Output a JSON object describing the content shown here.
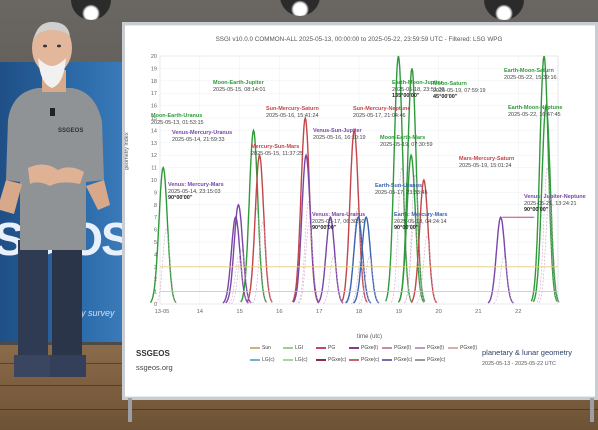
{
  "chart_data": {
    "type": "line",
    "title": "SSGI v10.0.0 COMMON-ALL 2025-05-13, 00:00:00 to 2025-05-22, 23:59:59 UTC - Filtered: LSG WPG",
    "ylabel": "geometry index",
    "xlabel": "time (utc)",
    "x_ticks": [
      "13-05",
      "14",
      "15",
      "16",
      "17",
      "18",
      "19",
      "20",
      "21",
      "22"
    ],
    "y_ticks": [
      0,
      1,
      2,
      3,
      4,
      5,
      6,
      7,
      8,
      9,
      10,
      11,
      12,
      13,
      14,
      15,
      16,
      17,
      18,
      19,
      20
    ],
    "ylim": [
      0,
      20
    ],
    "xlim": [
      13,
      23
    ],
    "grid": true,
    "legend_position": "bottom",
    "series": [
      {
        "name": "Sun",
        "color": "#c9b37e"
      },
      {
        "name": "LGI",
        "color": "#9ecf8f"
      },
      {
        "name": "PG",
        "color": "#c8407e"
      },
      {
        "name": "PGxe(I)",
        "color": "#8a3a8a"
      },
      {
        "name": "PGxe(I)",
        "color": "#c98da0"
      },
      {
        "name": "PGxe(I)",
        "color": "#b99bc6"
      },
      {
        "name": "PGxe(I)",
        "color": "#d3b1b1"
      },
      {
        "name": "LG(c)",
        "color": "#6fb3d6"
      },
      {
        "name": "LG(c)",
        "color": "#a8d69c"
      },
      {
        "name": "PGxe(c)",
        "color": "#8b2a4b"
      },
      {
        "name": "PGxe(c)",
        "color": "#c06a6a"
      },
      {
        "name": "PGxe(c)",
        "color": "#7a6bb0"
      },
      {
        "name": "PGxe(c)",
        "color": "#999999"
      }
    ],
    "events": [
      {
        "label": "Moon-Earth-Uranus",
        "time": "2025-05-13, 01:53:15",
        "x": 13.08,
        "y": 11,
        "color": "#2f9a3a"
      },
      {
        "label": "Venus-Mercury-Uranus",
        "time": "2025-05-14, 21:59:33",
        "x": 14.9,
        "y": 7,
        "color": "#7a45a8"
      },
      {
        "label": "Moon-Earth-Jupiter",
        "time": "2025-05-15, 08:14:01",
        "x": 15.35,
        "y": 14,
        "color": "#2f9a3a"
      },
      {
        "label": "Mercury-Sun-Mars",
        "time": "2025-05-15, 11:37:25",
        "x": 15.5,
        "y": 12,
        "color": "#c2454a"
      },
      {
        "label": "Sun-Mercury-Saturn",
        "time": "2025-05-16, 15:41:24",
        "x": 16.65,
        "y": 15,
        "color": "#c2454a"
      },
      {
        "label": "Venus-Sun-Jupiter",
        "time": "2025-05-16, 16:10:19",
        "x": 16.67,
        "y": 12,
        "color": "#7a45a8"
      },
      {
        "label": "Sun-Mercury-Neptune",
        "time": "2025-05-17, 21:04:46",
        "x": 17.88,
        "y": 14,
        "color": "#c2454a"
      },
      {
        "label": "Venus: Mars-Uranus",
        "time": "2025-05-17, 06:30:50",
        "x": 17.28,
        "y": 7,
        "color": "#7a45a8"
      },
      {
        "label": "Earth-Moon-Jupiter",
        "time": "2025-05-18, 23:51:33",
        "x": 18.99,
        "y": 20,
        "color": "#2f9a3a"
      },
      {
        "label": "Moon-Saturn",
        "time": "2025-05-19, 07:59:19",
        "x": 19.33,
        "y": 19,
        "color": "#2f9a3a"
      },
      {
        "label": "Earth-Sun-Uranus",
        "time": "2025-05-17, 23:33:45",
        "x": 17.98,
        "y": 7,
        "color": "#3a64b0"
      },
      {
        "label": "Earth: Mercury-Mars",
        "time": "2025-05-18, 04:24:14",
        "x": 18.18,
        "y": 7,
        "color": "#3a64b0"
      },
      {
        "label": "Moon-Earth-Mars",
        "time": "2025-05-19, 07:30:59",
        "x": 19.31,
        "y": 12,
        "color": "#2f9a3a"
      },
      {
        "label": "Mars-Mercury-Saturn",
        "time": "2025-05-19, 15:01:24",
        "x": 19.63,
        "y": 10,
        "color": "#c2454a"
      },
      {
        "label": "Earth-Moon-Saturn",
        "time": "2025-05-22, 15:39:16",
        "x": 22.65,
        "y": 20,
        "color": "#2f9a3a"
      },
      {
        "label": "Earth-Moon-Neptune",
        "time": "2025-05-22, 16:47:45",
        "x": 22.7,
        "y": 16,
        "color": "#2f9a3a"
      },
      {
        "label": "Venus: Jupiter-Neptune",
        "time": "2025-05-21, 13:24:21",
        "x": 21.56,
        "y": 7,
        "color": "#7a45a8"
      },
      {
        "label": "Venus: Mercury-Mars",
        "time": "2025-05-14, 23:15:03",
        "x": 14.97,
        "y": 8,
        "color": "#7a45a8"
      }
    ]
  },
  "annotations": [
    {
      "title": "Moon-Earth-Uranus",
      "time": "2025-05-13, 01:53:15",
      "color": "#2f9a3a"
    },
    {
      "title": "Venus-Mercury-Uranus",
      "time": "2025-05-14, 21:59:33",
      "color": "#7a45a8"
    },
    {
      "title": "Moon-Earth-Jupiter",
      "time": "2025-05-15, 08:14:01",
      "color": "#2f9a3a"
    },
    {
      "title": "Mercury-Sun-Mars",
      "time": "2025-05-15, 11:37:25",
      "color": "#c2454a"
    },
    {
      "title": "Sun-Mercury-Saturn",
      "time": "2025-05-16, 15:41:24",
      "color": "#c2454a"
    },
    {
      "title": "Venus-Sun-Jupiter",
      "time": "2025-05-16, 16:10:19",
      "color": "#7a45a8"
    },
    {
      "title": "Sun-Mercury-Neptune",
      "time": "2025-05-17, 21:04:46",
      "color": "#c2454a"
    },
    {
      "title": "Earth-Moon-Jupiter",
      "time": "2025-05-18, 23:51:33",
      "extra": "135°00'00\"",
      "color": "#2f9a3a"
    },
    {
      "title": "Moon-Saturn",
      "time": "2025-05-19, 07:59:19",
      "extra": "45°00'00\"",
      "color": "#2f9a3a"
    },
    {
      "title": "Earth-Moon-Saturn",
      "time": "2025-05-22, 15:39:16",
      "color": "#2f9a3a"
    },
    {
      "title": "Earth-Moon-Neptune",
      "time": "2025-05-22, 16:47:45",
      "color": "#2f9a3a"
    },
    {
      "title": "Moon-Earth-Mars",
      "time": "2025-05-19, 07:30:59",
      "color": "#2f9a3a"
    },
    {
      "title": "Mars-Mercury-Saturn",
      "time": "2025-05-19, 15:01:24",
      "color": "#c2454a"
    },
    {
      "title": "Earth-Sun-Uranus",
      "time": "2025-05-17, 23:33:45",
      "color": "#3a64b0"
    },
    {
      "title": "Venus: Mars-Uranus",
      "time": "2025-05-17, 06:30:50",
      "extra": "90°00'00\"",
      "color": "#7a45a8"
    },
    {
      "title": "Earth: Mercury-Mars",
      "time": "2025-05-18, 04:24:14",
      "extra": "90°00'00\"",
      "color": "#3a64b0"
    },
    {
      "title": "Venus: Mercury-Mars",
      "time": "2025-05-14, 23:15:03",
      "extra": "90°00'00\"",
      "color": "#7a45a8"
    },
    {
      "title": "Venus: Jupiter-Neptune",
      "time": "2025-05-21, 13:24:21",
      "extra": "90°00'00\"",
      "color": "#7a45a8"
    }
  ],
  "footer": {
    "brand": "SSGEOS",
    "site": "ssgeos.org",
    "right_title": "planetary & lunar geometry",
    "right_sub": "2025-05-13 - 2025-05-22 UTC"
  },
  "shirt_logo": "SSGEOS",
  "banner": {
    "big": "SG OS",
    "sub": "ry survey"
  }
}
